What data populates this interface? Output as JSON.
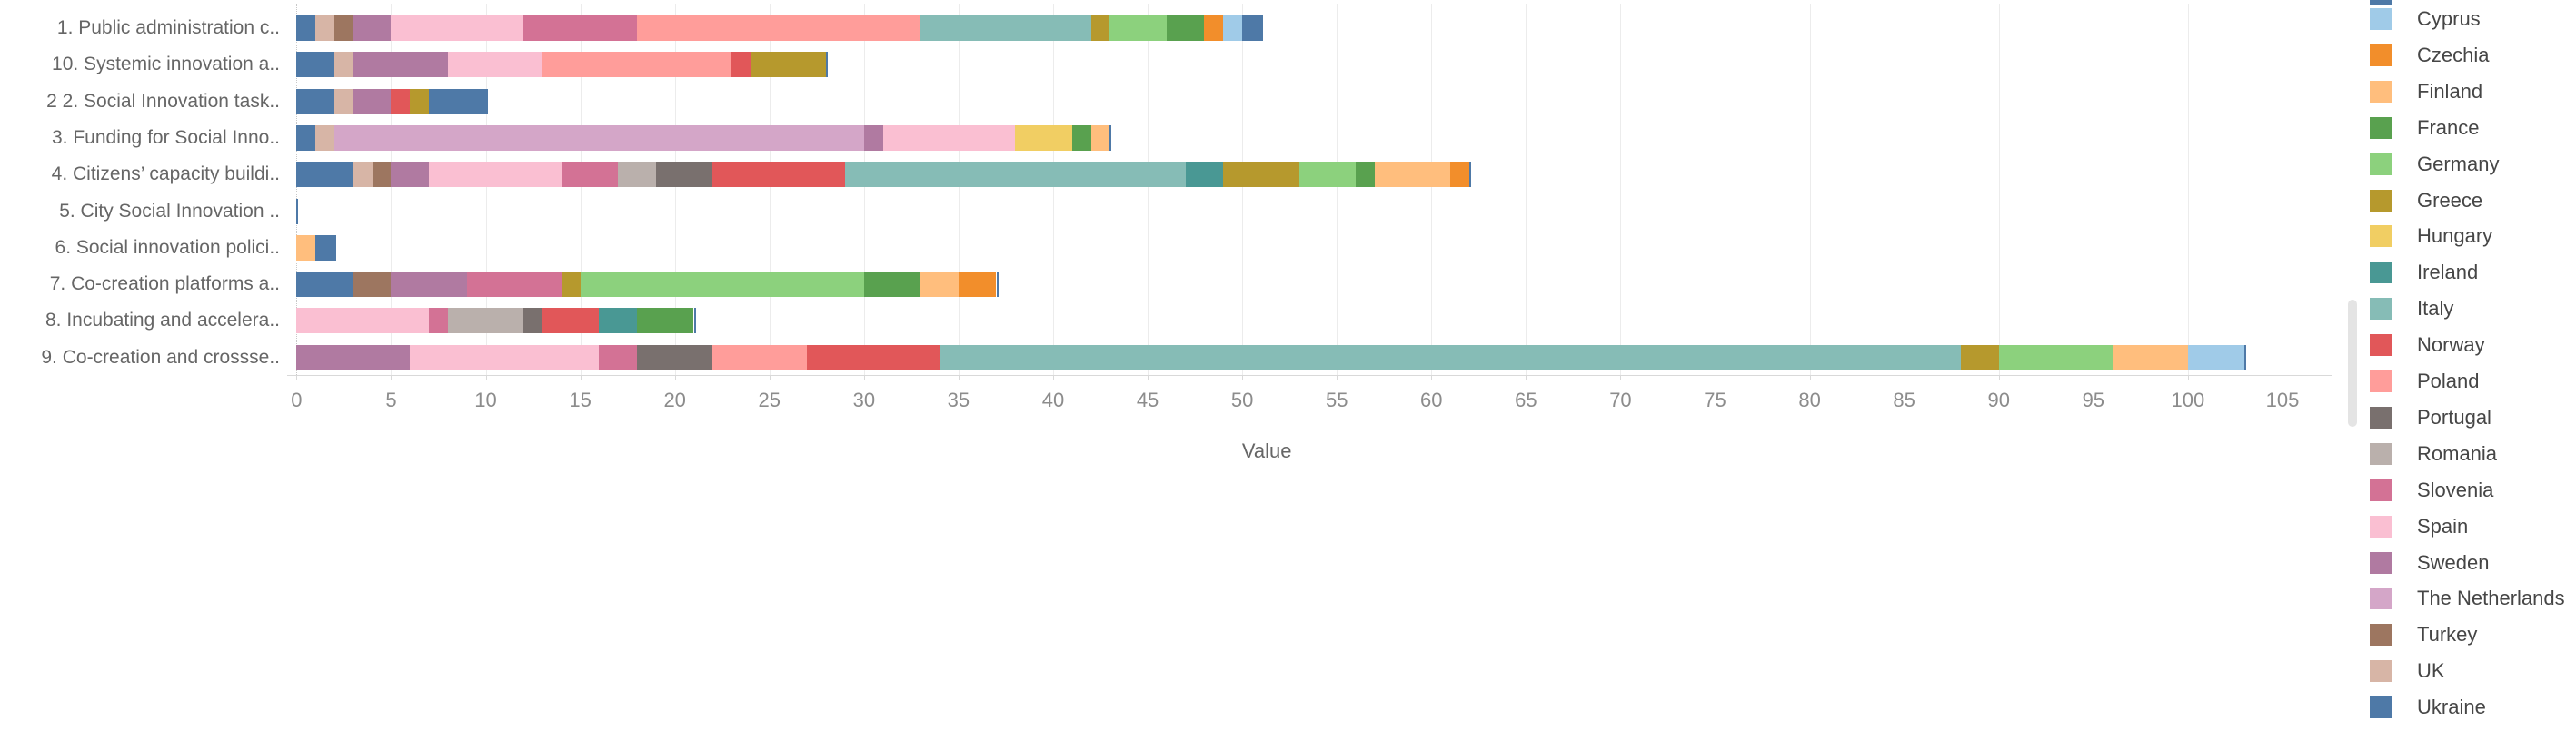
{
  "chart_data": {
    "type": "bar",
    "subtype": "horizontal-stacked",
    "xlabel": "Value",
    "x_ticks": {
      "min": 0,
      "max": 105,
      "step": 5
    },
    "xlim": [
      0,
      107
    ],
    "grid": "vertical-light",
    "legend_position": "right",
    "legend_note": "legend scrolled: one unnamed swatch clipped at top edge",
    "colors": {
      "Cyprus": "#A0CBE8",
      "Czechia": "#F28E2B",
      "Finland": "#FFBE7D",
      "France": "#59A14F",
      "Germany": "#8CD17D",
      "Greece": "#B6992D",
      "Hungary": "#F1CE63",
      "Ireland": "#499894",
      "Italy": "#86BCB6",
      "Norway": "#E15759",
      "Poland": "#FF9D9A",
      "Portugal": "#79706E",
      "Romania": "#BAB0AC",
      "Slovenia": "#D37295",
      "Spain": "#FABFD2",
      "Sweden": "#B07AA1",
      "The Netherlands": "#D4A6C8",
      "Turkey": "#9D7660",
      "UK": "#D7B5A6",
      "Ukraine": "#4E79A7",
      "unknown": "#4E79A7"
    },
    "legend": [
      "Cyprus",
      "Czechia",
      "Finland",
      "France",
      "Germany",
      "Greece",
      "Hungary",
      "Ireland",
      "Italy",
      "Norway",
      "Poland",
      "Portugal",
      "Romania",
      "Slovenia",
      "Spain",
      "Sweden",
      "The Netherlands",
      "Turkey",
      "UK",
      "Ukraine"
    ],
    "rows": [
      {
        "label": "1. Public administration c..",
        "segments": [
          {
            "country": "Ukraine",
            "value": 1
          },
          {
            "country": "UK",
            "value": 1
          },
          {
            "country": "Turkey",
            "value": 1
          },
          {
            "country": "Sweden",
            "value": 2
          },
          {
            "country": "Spain",
            "value": 7
          },
          {
            "country": "Slovenia",
            "value": 6
          },
          {
            "country": "Poland",
            "value": 15
          },
          {
            "country": "Italy",
            "value": 9
          },
          {
            "country": "Greece",
            "value": 1
          },
          {
            "country": "Germany",
            "value": 3
          },
          {
            "country": "France",
            "value": 2
          },
          {
            "country": "Czechia",
            "value": 1
          },
          {
            "country": "Cyprus",
            "value": 1
          },
          {
            "country": "unknown",
            "value": 1
          }
        ]
      },
      {
        "label": "10. Systemic innovation a..",
        "segments": [
          {
            "country": "Ukraine",
            "value": 2
          },
          {
            "country": "UK",
            "value": 1
          },
          {
            "country": "Sweden",
            "value": 5
          },
          {
            "country": "Spain",
            "value": 5
          },
          {
            "country": "Poland",
            "value": 10
          },
          {
            "country": "Norway",
            "value": 1
          },
          {
            "country": "Greece",
            "value": 4
          }
        ]
      },
      {
        "label": "2 2. Social Innovation task..",
        "segments": [
          {
            "country": "Ukraine",
            "value": 2
          },
          {
            "country": "UK",
            "value": 1
          },
          {
            "country": "Sweden",
            "value": 2
          },
          {
            "country": "Norway",
            "value": 1
          },
          {
            "country": "Greece",
            "value": 1
          },
          {
            "country": "unknown",
            "value": 3
          }
        ]
      },
      {
        "label": "3. Funding for Social Inno..",
        "segments": [
          {
            "country": "Ukraine",
            "value": 1
          },
          {
            "country": "UK",
            "value": 1
          },
          {
            "country": "The Netherlands",
            "value": 28
          },
          {
            "country": "Sweden",
            "value": 1
          },
          {
            "country": "Spain",
            "value": 7
          },
          {
            "country": "Hungary",
            "value": 3
          },
          {
            "country": "France",
            "value": 1
          },
          {
            "country": "Finland",
            "value": 1
          }
        ]
      },
      {
        "label": "4. Citizens’ capacity buildi..",
        "segments": [
          {
            "country": "Ukraine",
            "value": 3
          },
          {
            "country": "UK",
            "value": 1
          },
          {
            "country": "Turkey",
            "value": 1
          },
          {
            "country": "Sweden",
            "value": 2
          },
          {
            "country": "Spain",
            "value": 7
          },
          {
            "country": "Slovenia",
            "value": 3
          },
          {
            "country": "Romania",
            "value": 2
          },
          {
            "country": "Portugal",
            "value": 3
          },
          {
            "country": "Norway",
            "value": 7
          },
          {
            "country": "Italy",
            "value": 18
          },
          {
            "country": "Ireland",
            "value": 2
          },
          {
            "country": "Greece",
            "value": 4
          },
          {
            "country": "Germany",
            "value": 3
          },
          {
            "country": "France",
            "value": 1
          },
          {
            "country": "Finland",
            "value": 4
          },
          {
            "country": "Czechia",
            "value": 1
          }
        ]
      },
      {
        "label": "5. City Social Innovation ..",
        "segments": []
      },
      {
        "label": "6. Social innovation polici..",
        "segments": [
          {
            "country": "Finland",
            "value": 1
          },
          {
            "country": "unknown",
            "value": 1
          }
        ]
      },
      {
        "label": "7. Co-creation platforms a..",
        "segments": [
          {
            "country": "Ukraine",
            "value": 3
          },
          {
            "country": "Turkey",
            "value": 2
          },
          {
            "country": "Sweden",
            "value": 4
          },
          {
            "country": "Slovenia",
            "value": 5
          },
          {
            "country": "Greece",
            "value": 1
          },
          {
            "country": "Germany",
            "value": 15
          },
          {
            "country": "France",
            "value": 3
          },
          {
            "country": "Finland",
            "value": 2
          },
          {
            "country": "Czechia",
            "value": 2
          }
        ]
      },
      {
        "label": "8. Incubating and accelera..",
        "segments": [
          {
            "country": "Spain",
            "value": 7
          },
          {
            "country": "Slovenia",
            "value": 1
          },
          {
            "country": "Romania",
            "value": 4
          },
          {
            "country": "Portugal",
            "value": 1
          },
          {
            "country": "Norway",
            "value": 3
          },
          {
            "country": "Ireland",
            "value": 2
          },
          {
            "country": "France",
            "value": 3
          }
        ]
      },
      {
        "label": "9. Co-creation and crossse..",
        "segments": [
          {
            "country": "Sweden",
            "value": 6
          },
          {
            "country": "Spain",
            "value": 10
          },
          {
            "country": "Slovenia",
            "value": 2
          },
          {
            "country": "Portugal",
            "value": 4
          },
          {
            "country": "Poland",
            "value": 5
          },
          {
            "country": "Norway",
            "value": 7
          },
          {
            "country": "Italy",
            "value": 54
          },
          {
            "country": "Greece",
            "value": 2
          },
          {
            "country": "Germany",
            "value": 6
          },
          {
            "country": "Finland",
            "value": 4
          },
          {
            "country": "Cyprus",
            "value": 3
          }
        ]
      }
    ],
    "styles": {
      "grid_color": "#ececec",
      "zero_line_color": "#c8c8c8",
      "axis_line_color": "#d9d9d9",
      "tick_label_color": "#8c8c8c",
      "axis_title_color": "#666666",
      "y_label_color": "#666666",
      "legend_text_color": "#464646",
      "bar_end_cap_color": "#4E79A7"
    }
  }
}
